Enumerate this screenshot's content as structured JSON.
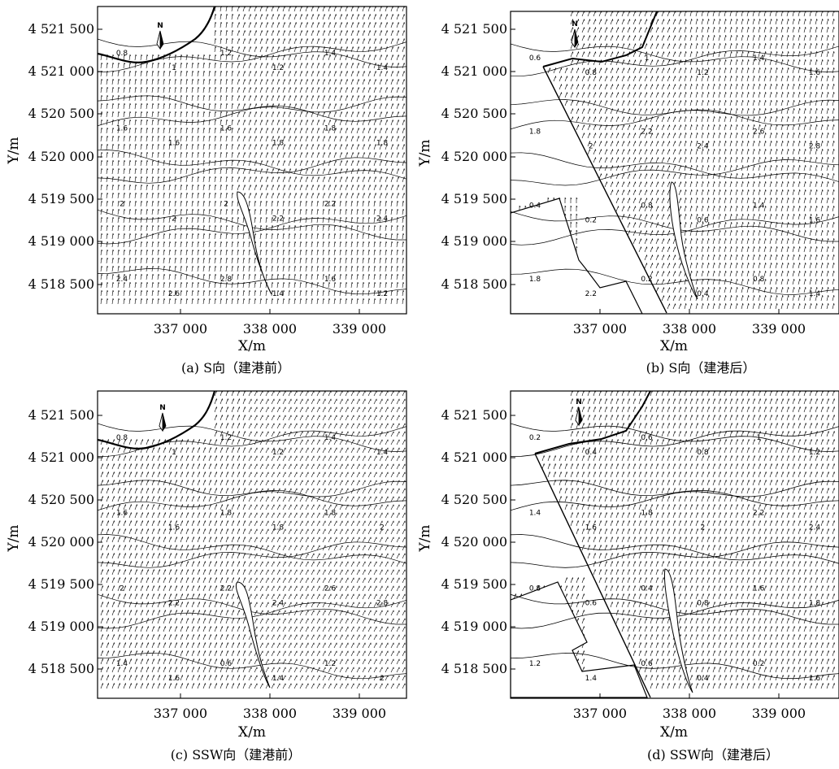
{
  "panels": [
    {
      "caption": "(a) S向（建港前）",
      "xlabel": "X/m",
      "ylabel": "Y/m",
      "x_ticks": [
        "337 000",
        "338 000",
        "339 000"
      ],
      "y_ticks": [
        "4 521 500",
        "4 521 000",
        "4 520 500",
        "4 520 000",
        "4 519 500",
        "4 519 000",
        "4 518 500"
      ],
      "north_label": "N",
      "contour_labels": [
        "0.8",
        "1",
        "1.2",
        "1.2",
        "1.4",
        "1.4",
        "1.6",
        "1.6",
        "1.6",
        "1.8",
        "1.8",
        "1.8",
        "2",
        "2",
        "2",
        "2.2",
        "2.2",
        "2.4",
        "2.4",
        "2.6",
        "2.8",
        "1.4",
        "1.6",
        "1.2"
      ]
    },
    {
      "caption": "(b) S向（建港后）",
      "xlabel": "X/m",
      "ylabel": "Y/m",
      "x_ticks": [
        "337 000",
        "338 000",
        "339 000"
      ],
      "y_ticks": [
        "4 521 500",
        "4 521 000",
        "4 520 500",
        "4 520 000",
        "4 519 500",
        "4 519 000",
        "4 518 500"
      ],
      "north_label": "N",
      "contour_labels": [
        "0.6",
        "0.8",
        "1",
        "1.2",
        "1.4",
        "1.6",
        "1.8",
        "2",
        "2.2",
        "2.4",
        "2.6",
        "2.8",
        "0.4",
        "0.2",
        "0.8",
        "0.6",
        "1.4",
        "1.6",
        "1.8",
        "2.2",
        "0.2",
        "0.4",
        "0.8",
        "1.4"
      ]
    },
    {
      "caption": "(c) SSW向（建港前）",
      "xlabel": "X/m",
      "ylabel": "Y/m",
      "x_ticks": [
        "337 000",
        "338 000",
        "339 000"
      ],
      "y_ticks": [
        "4 521 500",
        "4 521 000",
        "4 520 500",
        "4 520 000",
        "4 519 500",
        "4 519 000",
        "4 518 500"
      ],
      "north_label": "N",
      "contour_labels": [
        "0.8",
        "1",
        "1.2",
        "1.2",
        "1.4",
        "1.4",
        "1.6",
        "1.6",
        "1.8",
        "1.8",
        "1.8",
        "2",
        "2",
        "2.2",
        "2.2",
        "2.4",
        "2.6",
        "2.8",
        "1.4",
        "1.6",
        "0.6",
        "1.4",
        "1.2",
        "2"
      ]
    },
    {
      "caption": "(d) SSW向（建港后）",
      "xlabel": "X/m",
      "ylabel": "Y/m",
      "x_ticks": [
        "337 000",
        "338 000",
        "339 000"
      ],
      "y_ticks": [
        "4 521 500",
        "4 521 000",
        "4 520 500",
        "4 520 000",
        "4 519 500",
        "4 519 000",
        "4 518 500"
      ],
      "north_label": "N",
      "contour_labels": [
        "0.2",
        "0.4",
        "0.6",
        "0.8",
        "1",
        "1.2",
        "1.4",
        "1.6",
        "1.8",
        "2",
        "2.2",
        "2.4",
        "0.8",
        "0.6",
        "0.4",
        "0.8",
        "1.6",
        "1.8",
        "1.2",
        "1.4",
        "0.6",
        "0.4",
        "0.2",
        "1.6"
      ]
    }
  ]
}
